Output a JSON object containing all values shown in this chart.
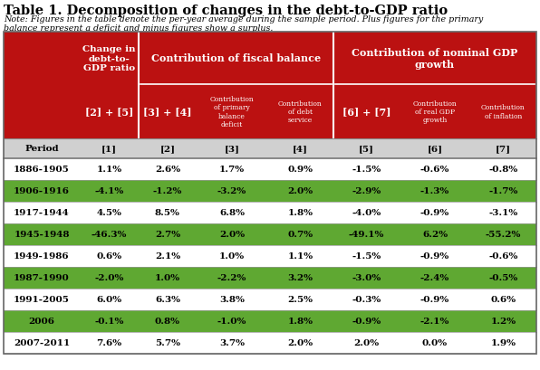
{
  "title": "Table 1. Decomposition of changes in the debt-to-GDP ratio",
  "note_line1": "Note: Figures in the table denote the per-year average during the sample period. Plus figures for the primary",
  "note_line2": "balance represent a deficit and minus figures show a surplus.",
  "red_color": "#BB1111",
  "green_color": "#5FA832",
  "light_gray": "#D0D0D0",
  "white": "#FFFFFF",
  "black": "#000000",
  "col_widths_rel": [
    78,
    60,
    60,
    72,
    68,
    68,
    72,
    68
  ],
  "header_group1_label": "Change in\ndebt-to-\nGDP ratio",
  "header_group1_sub": "[2] + [5]",
  "header_group2_label": "Contribution of fiscal balance",
  "header_group2_sub": "[3] + [4]",
  "header_group2_sub3": "Contribution\nof primary\nbalance\ndeficit",
  "header_group2_sub4": "Contribution\nof debt\nservice",
  "header_group3_label": "Contribution of nominal GDP\ngrowth",
  "header_group3_sub": "[6] + [7]",
  "header_group3_sub6": "Contribution\nof real GDP\ngrowth",
  "header_group3_sub7": "Contribution\nof inflation",
  "col_labels": [
    "Period",
    "[1]",
    "[2]",
    "[3]",
    "[4]",
    "[5]",
    "[6]",
    "[7]"
  ],
  "row_bg": [
    "#FFFFFF",
    "#5FA832",
    "#FFFFFF",
    "#5FA832",
    "#FFFFFF",
    "#5FA832",
    "#FFFFFF",
    "#5FA832",
    "#FFFFFF"
  ],
  "periods": [
    "1886-1905",
    "1906-1916",
    "1917-1944",
    "1945-1948",
    "1949-1986",
    "1987-1990",
    "1991-2005",
    "2006",
    "2007-2011"
  ],
  "data": [
    [
      "1.1%",
      "2.6%",
      "1.7%",
      "0.9%",
      "-1.5%",
      "-0.6%",
      "-0.8%"
    ],
    [
      "-4.1%",
      "-1.2%",
      "-3.2%",
      "2.0%",
      "-2.9%",
      "-1.3%",
      "-1.7%"
    ],
    [
      "4.5%",
      "8.5%",
      "6.8%",
      "1.8%",
      "-4.0%",
      "-0.9%",
      "-3.1%"
    ],
    [
      "-46.3%",
      "2.7%",
      "2.0%",
      "0.7%",
      "-49.1%",
      "6.2%",
      "-55.2%"
    ],
    [
      "0.6%",
      "2.1%",
      "1.0%",
      "1.1%",
      "-1.5%",
      "-0.9%",
      "-0.6%"
    ],
    [
      "-2.0%",
      "1.0%",
      "-2.2%",
      "3.2%",
      "-3.0%",
      "-2.4%",
      "-0.5%"
    ],
    [
      "6.0%",
      "6.3%",
      "3.8%",
      "2.5%",
      "-0.3%",
      "-0.9%",
      "0.6%"
    ],
    [
      "-0.1%",
      "0.8%",
      "-1.0%",
      "1.8%",
      "-0.9%",
      "-2.1%",
      "1.2%"
    ],
    [
      "7.6%",
      "5.7%",
      "3.7%",
      "2.0%",
      "2.0%",
      "0.0%",
      "1.9%"
    ]
  ]
}
